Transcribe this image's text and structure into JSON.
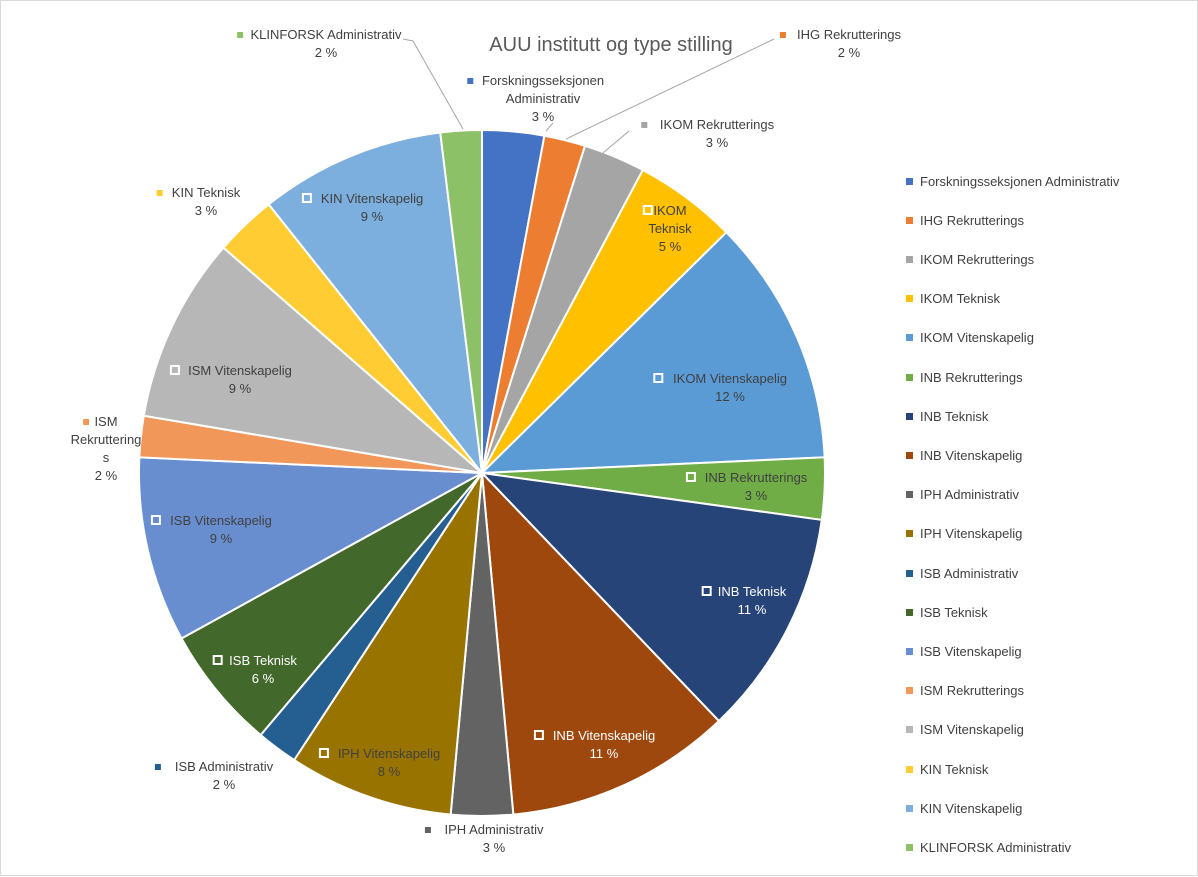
{
  "chart_data": {
    "type": "pie",
    "title": "AUU institutt og type stilling",
    "slices": [
      {
        "label": "Forskningsseksjonen Administrativ",
        "value": 3,
        "value_label": "3 %",
        "color": "#4472C4"
      },
      {
        "label": "IHG Rekrutterings",
        "value": 2,
        "value_label": "2 %",
        "color": "#ED7D31"
      },
      {
        "label": "IKOM  Rekrutterings",
        "value": 3,
        "value_label": "3 %",
        "color": "#A5A5A5"
      },
      {
        "label": "IKOM  Teknisk",
        "value": 5,
        "value_label": "5 %",
        "color": "#FFC000"
      },
      {
        "label": "IKOM  Vitenskapelig",
        "value": 12,
        "value_label": "12 %",
        "color": "#5B9BD5"
      },
      {
        "label": "INB Rekrutterings",
        "value": 3,
        "value_label": "3 %",
        "color": "#70AD47"
      },
      {
        "label": "INB Teknisk",
        "value": 11,
        "value_label": "11 %",
        "color": "#264478"
      },
      {
        "label": "INB Vitenskapelig",
        "value": 11,
        "value_label": "11 %",
        "color": "#9E480E"
      },
      {
        "label": "IPH Administrativ",
        "value": 3,
        "value_label": "3 %",
        "color": "#636363"
      },
      {
        "label": "IPH Vitenskapelig",
        "value": 8,
        "value_label": "8 %",
        "color": "#997300"
      },
      {
        "label": "ISB Administrativ",
        "value": 2,
        "value_label": "2 %",
        "color": "#255E91"
      },
      {
        "label": "ISB Teknisk",
        "value": 6,
        "value_label": "6 %",
        "color": "#43682B"
      },
      {
        "label": "ISB Vitenskapelig",
        "value": 9,
        "value_label": "9 %",
        "color": "#698ED0"
      },
      {
        "label": "ISM Rekrutterings",
        "value": 2,
        "value_label": "2 %",
        "color": "#F1975A"
      },
      {
        "label": "ISM Vitenskapelig",
        "value": 9,
        "value_label": "9 %",
        "color": "#B7B7B7"
      },
      {
        "label": "KIN Teknisk",
        "value": 3,
        "value_label": "3 %",
        "color": "#FFCD33"
      },
      {
        "label": "KIN Vitenskapelig",
        "value": 9,
        "value_label": "9 %",
        "color": "#7CAFDD"
      },
      {
        "label": "KLINFORSK Administrativ",
        "value": 2,
        "value_label": "2 %",
        "color": "#8CC168"
      }
    ],
    "data_labels": {
      "Forskningsseksjonen Administrativ": [
        "Forskningsseksjonen",
        "Administrativ"
      ],
      "IHG Rekrutterings": [
        "IHG Rekrutterings"
      ],
      "IKOM  Rekrutterings": [
        "IKOM  Rekrutterings"
      ],
      "IKOM  Teknisk": [
        "IKOM",
        "Teknisk"
      ],
      "IKOM  Vitenskapelig": [
        "IKOM  Vitenskapelig"
      ],
      "INB Rekrutterings": [
        "INB Rekrutterings"
      ],
      "INB Teknisk": [
        "INB Teknisk"
      ],
      "INB Vitenskapelig": [
        "INB Vitenskapelig"
      ],
      "IPH Administrativ": [
        "IPH Administrativ"
      ],
      "IPH Vitenskapelig": [
        "IPH Vitenskapelig"
      ],
      "ISB Administrativ": [
        "ISB Administrativ"
      ],
      "ISB Teknisk": [
        "ISB Teknisk"
      ],
      "ISB Vitenskapelig": [
        "ISB Vitenskapelig"
      ],
      "ISM Rekrutterings": [
        "ISM",
        "Rekruttering",
        "s"
      ],
      "ISM Vitenskapelig": [
        "ISM Vitenskapelig"
      ],
      "KIN Teknisk": [
        "KIN Teknisk"
      ],
      "KIN Vitenskapelig": [
        "KIN Vitenskapelig"
      ],
      "KLINFORSK Administrativ": [
        "KLINFORSK Administrativ"
      ]
    },
    "legend_position": "right"
  }
}
